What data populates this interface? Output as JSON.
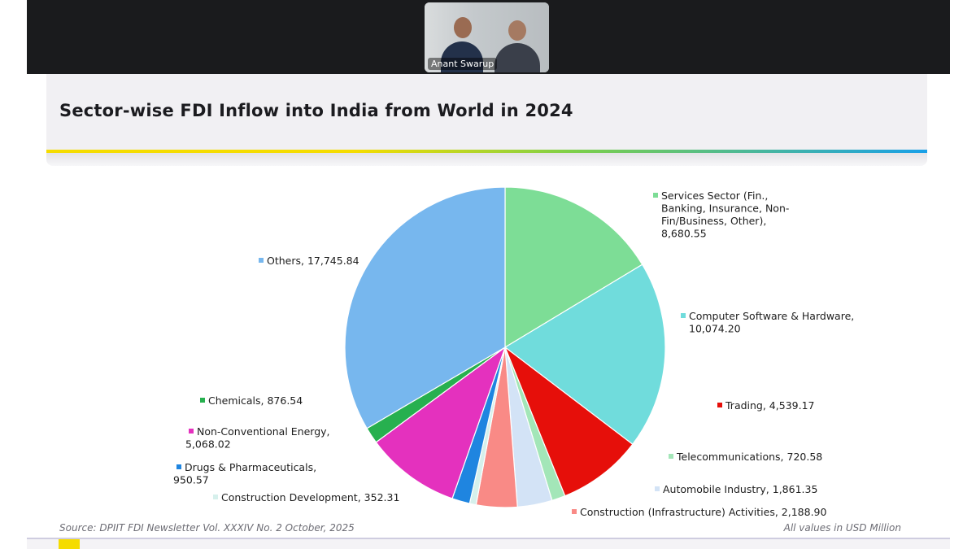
{
  "meeting": {
    "participant_name": "Anant Swarup"
  },
  "slide": {
    "title": "Sector-wise FDI Inflow into India from World in 2024",
    "source": "Source: DPIIT FDI Newsletter Vol. XXXIV No. 2 October, 2025",
    "units_note": "All values in USD Million"
  },
  "chart_data": {
    "type": "pie",
    "title": "Sector-wise FDI Inflow into India from World in 2024",
    "slices": [
      {
        "label": "Services Sector (Fin., Banking, Insurance, Non-Fin/Business, Other)",
        "value": 8680.55,
        "display": "8,680.55",
        "color": "#7ddd96"
      },
      {
        "label": "Computer Software & Hardware",
        "value": 10074.2,
        "display": "10,074.20",
        "color": "#70dcdc"
      },
      {
        "label": "Trading",
        "value": 4539.17,
        "display": "4,539.17",
        "color": "#e60f0a"
      },
      {
        "label": "Telecommunications",
        "value": 720.58,
        "display": "720.58",
        "color": "#a3e6b8"
      },
      {
        "label": "Automobile Industry",
        "value": 1861.35,
        "display": "1,861.35",
        "color": "#d3e3f6"
      },
      {
        "label": "Construction (Infrastructure) Activities",
        "value": 2188.9,
        "display": "2,188.90",
        "color": "#f98a86"
      },
      {
        "label": "Construction Development",
        "value": 352.31,
        "display": "352.31",
        "color": "#d6f0ec"
      },
      {
        "label": "Drugs & Pharmaceuticals",
        "value": 950.57,
        "display": "950.57",
        "color": "#1f85e0"
      },
      {
        "label": "Non-Conventional Energy",
        "value": 5068.02,
        "display": "5,068.02",
        "color": "#e431be"
      },
      {
        "label": "Chemicals",
        "value": 876.54,
        "display": "876.54",
        "color": "#27b04f"
      },
      {
        "label": "Others",
        "value": 17745.84,
        "display": "17,745.84",
        "color": "#77b7ee"
      }
    ],
    "legend_placement": "outside-labels",
    "units": "USD Million"
  }
}
